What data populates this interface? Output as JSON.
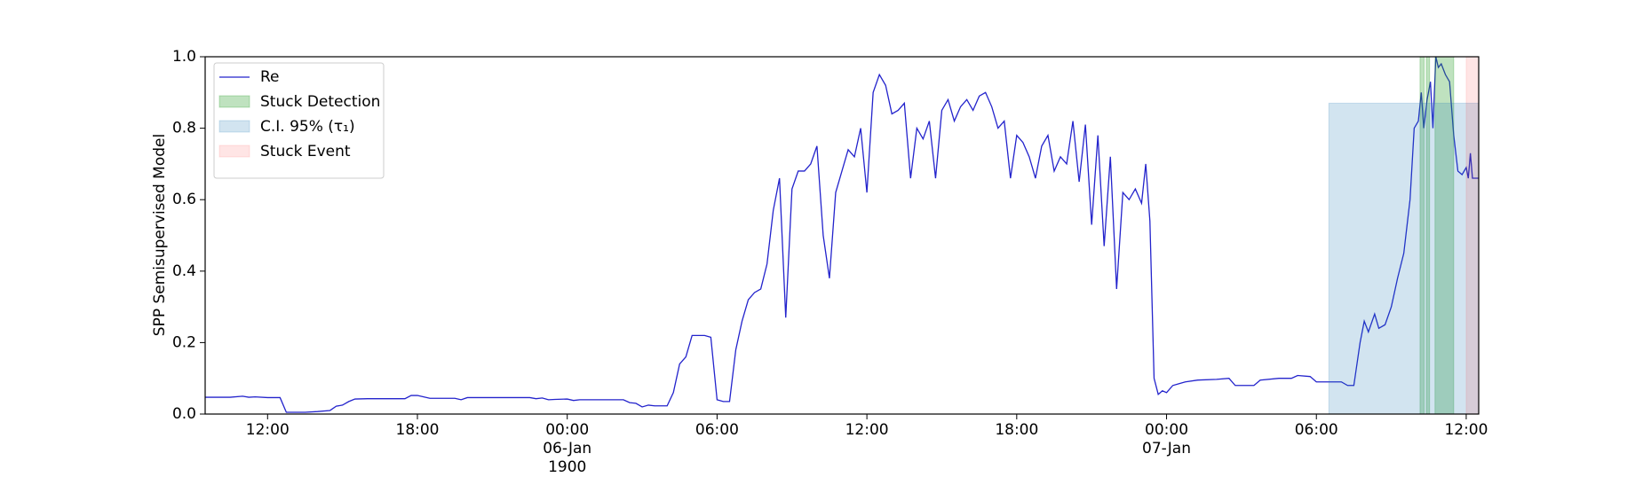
{
  "chart_data": {
    "type": "line",
    "ylabel": "SPP Semisupervised Model",
    "x": [
      "1900-01-05 09:30",
      "1900-01-05 10:00",
      "1900-01-05 10:30",
      "1900-01-05 11:00",
      "1900-01-05 11:15",
      "1900-01-05 11:30",
      "1900-01-05 12:00",
      "1900-01-05 12:30",
      "1900-01-05 12:45",
      "1900-01-05 13:00",
      "1900-01-05 13:30",
      "1900-01-05 14:00",
      "1900-01-05 14:30",
      "1900-01-05 14:45",
      "1900-01-05 15:00",
      "1900-01-05 15:15",
      "1900-01-05 15:30",
      "1900-01-05 16:00",
      "1900-01-05 16:30",
      "1900-01-05 17:00",
      "1900-01-05 17:30",
      "1900-01-05 17:45",
      "1900-01-05 18:00",
      "1900-01-05 18:15",
      "1900-01-05 18:30",
      "1900-01-05 19:00",
      "1900-01-05 19:30",
      "1900-01-05 19:45",
      "1900-01-05 20:00",
      "1900-01-05 20:30",
      "1900-01-05 21:00",
      "1900-01-05 21:30",
      "1900-01-05 22:00",
      "1900-01-05 22:30",
      "1900-01-05 22:45",
      "1900-01-05 23:00",
      "1900-01-05 23:15",
      "1900-01-05 23:30",
      "1900-01-06 00:00",
      "1900-01-06 00:15",
      "1900-01-06 00:30",
      "1900-01-06 01:00",
      "1900-01-06 01:30",
      "1900-01-06 02:00",
      "1900-01-06 02:15",
      "1900-01-06 02:30",
      "1900-01-06 02:45",
      "1900-01-06 03:00",
      "1900-01-06 03:15",
      "1900-01-06 03:30",
      "1900-01-06 04:00",
      "1900-01-06 04:15",
      "1900-01-06 04:30",
      "1900-01-06 04:45",
      "1900-01-06 05:00",
      "1900-01-06 05:15",
      "1900-01-06 05:30",
      "1900-01-06 05:45",
      "1900-01-06 06:00",
      "1900-01-06 06:15",
      "1900-01-06 06:30",
      "1900-01-06 06:45",
      "1900-01-06 07:00",
      "1900-01-06 07:15",
      "1900-01-06 07:30",
      "1900-01-06 07:45",
      "1900-01-06 08:00",
      "1900-01-06 08:15",
      "1900-01-06 08:30",
      "1900-01-06 08:45",
      "1900-01-06 09:00",
      "1900-01-06 09:15",
      "1900-01-06 09:30",
      "1900-01-06 09:45",
      "1900-01-06 10:00",
      "1900-01-06 10:15",
      "1900-01-06 10:30",
      "1900-01-06 10:45",
      "1900-01-06 11:00",
      "1900-01-06 11:15",
      "1900-01-06 11:30",
      "1900-01-06 11:45",
      "1900-01-06 12:00",
      "1900-01-06 12:15",
      "1900-01-06 12:30",
      "1900-01-06 12:45",
      "1900-01-06 13:00",
      "1900-01-06 13:15",
      "1900-01-06 13:30",
      "1900-01-06 13:45",
      "1900-01-06 14:00",
      "1900-01-06 14:15",
      "1900-01-06 14:30",
      "1900-01-06 14:45",
      "1900-01-06 15:00",
      "1900-01-06 15:15",
      "1900-01-06 15:30",
      "1900-01-06 15:45",
      "1900-01-06 16:00",
      "1900-01-06 16:15",
      "1900-01-06 16:30",
      "1900-01-06 16:45",
      "1900-01-06 17:00",
      "1900-01-06 17:15",
      "1900-01-06 17:30",
      "1900-01-06 17:45",
      "1900-01-06 18:00",
      "1900-01-06 18:15",
      "1900-01-06 18:30",
      "1900-01-06 18:45",
      "1900-01-06 19:00",
      "1900-01-06 19:15",
      "1900-01-06 19:30",
      "1900-01-06 19:45",
      "1900-01-06 20:00",
      "1900-01-06 20:15",
      "1900-01-06 20:30",
      "1900-01-06 20:45",
      "1900-01-06 21:00",
      "1900-01-06 21:15",
      "1900-01-06 21:30",
      "1900-01-06 21:45",
      "1900-01-06 22:00",
      "1900-01-06 22:15",
      "1900-01-06 22:30",
      "1900-01-06 22:45",
      "1900-01-06 23:00",
      "1900-01-06 23:10",
      "1900-01-06 23:20",
      "1900-01-06 23:30",
      "1900-01-06 23:40",
      "1900-01-06 23:50",
      "1900-01-07 00:00",
      "1900-01-07 00:15",
      "1900-01-07 00:30",
      "1900-01-07 00:45",
      "1900-01-07 01:15",
      "1900-01-07 02:00",
      "1900-01-07 02:30",
      "1900-01-07 02:45",
      "1900-01-07 03:30",
      "1900-01-07 03:45",
      "1900-01-07 04:30",
      "1900-01-07 05:00",
      "1900-01-07 05:15",
      "1900-01-07 05:45",
      "1900-01-07 06:00",
      "1900-01-07 07:00",
      "1900-01-07 07:15",
      "1900-01-07 07:30",
      "1900-01-07 07:45",
      "1900-01-07 07:55",
      "1900-01-07 08:05",
      "1900-01-07 08:20",
      "1900-01-07 08:30",
      "1900-01-07 08:45",
      "1900-01-07 09:00",
      "1900-01-07 09:15",
      "1900-01-07 09:30",
      "1900-01-07 09:45",
      "1900-01-07 09:55",
      "1900-01-07 10:05",
      "1900-01-07 10:12",
      "1900-01-07 10:18",
      "1900-01-07 10:26",
      "1900-01-07 10:34",
      "1900-01-07 10:40",
      "1900-01-07 10:47",
      "1900-01-07 10:53",
      "1900-01-07 11:00",
      "1900-01-07 11:10",
      "1900-01-07 11:20",
      "1900-01-07 11:30",
      "1900-01-07 11:40",
      "1900-01-07 11:50",
      "1900-01-07 12:00",
      "1900-01-07 12:05",
      "1900-01-07 12:10",
      "1900-01-07 12:15",
      "1900-01-07 12:30"
    ],
    "series": [
      {
        "name": "Re",
        "color": "#2323cc",
        "values": [
          0.047,
          0.047,
          0.047,
          0.05,
          0.047,
          0.048,
          0.046,
          0.046,
          0.005,
          0.005,
          0.005,
          0.007,
          0.01,
          0.022,
          0.025,
          0.035,
          0.042,
          0.043,
          0.043,
          0.043,
          0.043,
          0.052,
          0.052,
          0.048,
          0.044,
          0.044,
          0.044,
          0.04,
          0.046,
          0.046,
          0.046,
          0.046,
          0.046,
          0.046,
          0.043,
          0.045,
          0.04,
          0.041,
          0.042,
          0.038,
          0.04,
          0.04,
          0.04,
          0.04,
          0.04,
          0.032,
          0.03,
          0.02,
          0.025,
          0.023,
          0.023,
          0.06,
          0.14,
          0.16,
          0.22,
          0.22,
          0.22,
          0.215,
          0.04,
          0.035,
          0.035,
          0.18,
          0.26,
          0.32,
          0.34,
          0.35,
          0.42,
          0.57,
          0.66,
          0.27,
          0.63,
          0.68,
          0.68,
          0.7,
          0.75,
          0.5,
          0.38,
          0.62,
          0.68,
          0.74,
          0.72,
          0.8,
          0.62,
          0.9,
          0.95,
          0.92,
          0.84,
          0.85,
          0.87,
          0.66,
          0.8,
          0.77,
          0.82,
          0.66,
          0.85,
          0.88,
          0.82,
          0.86,
          0.88,
          0.85,
          0.89,
          0.9,
          0.86,
          0.8,
          0.82,
          0.66,
          0.78,
          0.76,
          0.72,
          0.66,
          0.75,
          0.78,
          0.68,
          0.72,
          0.7,
          0.82,
          0.65,
          0.81,
          0.53,
          0.78,
          0.47,
          0.72,
          0.35,
          0.62,
          0.6,
          0.63,
          0.59,
          0.7,
          0.54,
          0.1,
          0.055,
          0.065,
          0.06,
          0.08,
          0.085,
          0.09,
          0.095,
          0.097,
          0.1,
          0.08,
          0.08,
          0.095,
          0.1,
          0.1,
          0.108,
          0.105,
          0.09,
          0.09,
          0.08,
          0.08,
          0.2,
          0.26,
          0.23,
          0.28,
          0.24,
          0.25,
          0.3,
          0.38,
          0.45,
          0.6,
          0.8,
          0.82,
          0.9,
          0.8,
          0.88,
          0.93,
          0.8,
          1.0,
          0.97,
          0.98,
          0.95,
          0.93,
          0.78,
          0.68,
          0.67,
          0.69,
          0.66,
          0.73,
          0.66,
          0.66
        ]
      }
    ],
    "spans": [
      {
        "name": "Stuck Detection",
        "color": "#2ca02c",
        "alpha": 0.3,
        "intervals": [
          [
            "1900-01-07 10:09",
            "1900-01-07 10:19"
          ],
          [
            "1900-01-07 10:24",
            "1900-01-07 10:32"
          ],
          [
            "1900-01-07 10:45",
            "1900-01-07 11:30"
          ]
        ]
      },
      {
        "name": "C.I. 95% (τ₁)",
        "color": "#1f77b4",
        "alpha": 0.2,
        "intervals": [
          [
            "1900-01-07 06:30",
            "1900-01-07 12:30"
          ]
        ],
        "ymax": 0.87
      },
      {
        "name": "Stuck Event",
        "color": "#ff0000",
        "alpha": 0.1,
        "intervals": [
          [
            "1900-01-07 12:00",
            "1900-01-07 12:30"
          ]
        ]
      }
    ],
    "xlim": [
      "1900-01-05 09:30",
      "1900-01-07 12:30"
    ],
    "xticks": [
      {
        "value": "1900-01-05 12:00",
        "label": "12:00"
      },
      {
        "value": "1900-01-05 18:00",
        "label": "18:00"
      },
      {
        "value": "1900-01-06 00:00",
        "label": "00:00\n06-Jan\n1900"
      },
      {
        "value": "1900-01-06 06:00",
        "label": "06:00"
      },
      {
        "value": "1900-01-06 12:00",
        "label": "12:00"
      },
      {
        "value": "1900-01-06 18:00",
        "label": "18:00"
      },
      {
        "value": "1900-01-07 00:00",
        "label": "00:00\n07-Jan"
      },
      {
        "value": "1900-01-07 06:00",
        "label": "06:00"
      },
      {
        "value": "1900-01-07 12:00",
        "label": "12:00"
      }
    ],
    "ylim": [
      0,
      1
    ],
    "yticks": [
      {
        "value": 0,
        "label": "0.0"
      },
      0.2,
      0.4,
      0.6,
      0.8,
      {
        "value": 1,
        "label": "1.0"
      }
    ],
    "legend": "upper left"
  }
}
